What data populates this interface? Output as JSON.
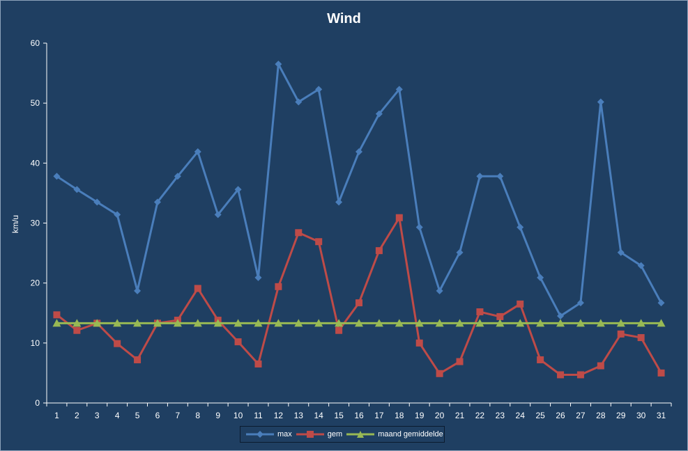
{
  "chart_data": {
    "type": "line",
    "title": "Wind",
    "xlabel": "",
    "ylabel": "km/u",
    "ylim": [
      0,
      60
    ],
    "yticks": [
      0,
      10,
      20,
      30,
      40,
      50,
      60
    ],
    "grid": false,
    "legend_position": "bottom",
    "categories": [
      "1",
      "2",
      "3",
      "4",
      "5",
      "6",
      "7",
      "8",
      "9",
      "10",
      "11",
      "12",
      "13",
      "14",
      "15",
      "16",
      "17",
      "18",
      "19",
      "20",
      "21",
      "22",
      "23",
      "24",
      "25",
      "26",
      "27",
      "28",
      "29",
      "30",
      "31"
    ],
    "series": [
      {
        "name": "max",
        "marker": "diamond",
        "color": "#4a7ebb",
        "values": [
          37.8,
          35.6,
          33.5,
          31.4,
          18.7,
          33.5,
          37.8,
          41.9,
          31.4,
          35.6,
          20.9,
          56.5,
          50.2,
          52.3,
          33.5,
          41.9,
          48.2,
          52.3,
          29.3,
          18.7,
          25.1,
          37.8,
          37.8,
          29.3,
          20.9,
          14.5,
          16.7,
          50.2,
          25.1,
          22.9,
          16.7
        ]
      },
      {
        "name": "gem",
        "marker": "square",
        "color": "#be4b48",
        "values": [
          14.7,
          12.1,
          13.3,
          9.9,
          7.2,
          13.3,
          13.8,
          19.1,
          13.8,
          10.2,
          6.5,
          19.4,
          28.4,
          26.9,
          12.1,
          16.7,
          25.4,
          30.9,
          10.0,
          4.9,
          6.9,
          15.2,
          14.4,
          16.5,
          7.2,
          4.7,
          4.7,
          6.2,
          11.5,
          10.9,
          5.0
        ]
      },
      {
        "name": "maand gemiddelde",
        "marker": "triangle",
        "color": "#98b954",
        "values": [
          13.3,
          13.3,
          13.3,
          13.3,
          13.3,
          13.3,
          13.3,
          13.3,
          13.3,
          13.3,
          13.3,
          13.3,
          13.3,
          13.3,
          13.3,
          13.3,
          13.3,
          13.3,
          13.3,
          13.3,
          13.3,
          13.3,
          13.3,
          13.3,
          13.3,
          13.3,
          13.3,
          13.3,
          13.3,
          13.3,
          13.3
        ]
      }
    ]
  },
  "colors": {
    "background": "#1f3f62",
    "axis": "#ffffff",
    "text": "#ffffff"
  }
}
